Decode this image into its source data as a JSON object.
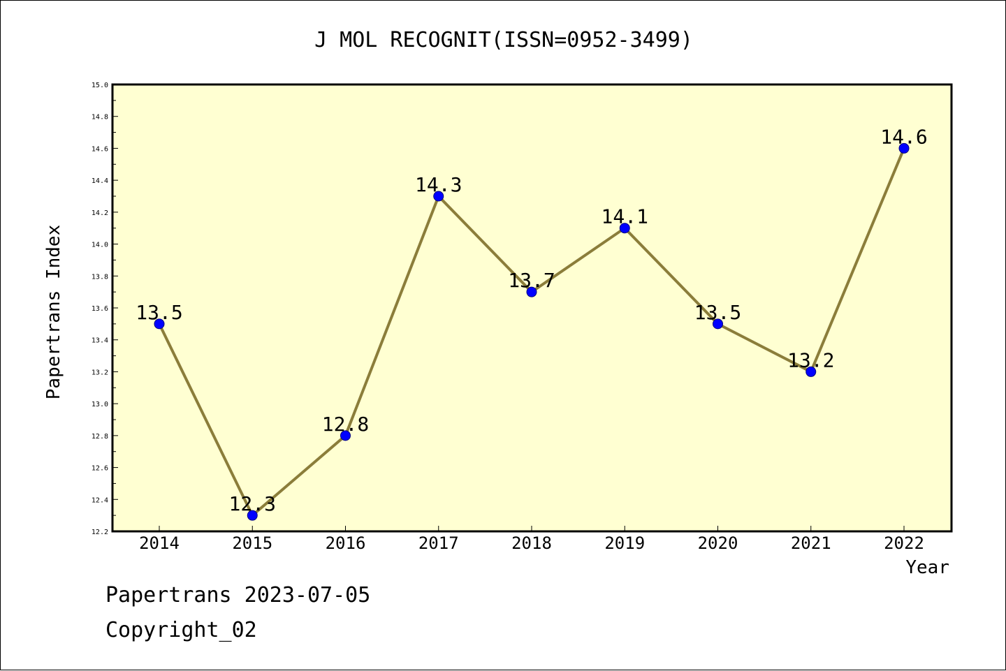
{
  "chart_data": {
    "type": "line",
    "title": "J MOL RECOGNIT(ISSN=0952-3499)",
    "xlabel": "Year",
    "ylabel": "Papertrans Index",
    "categories": [
      "2014",
      "2015",
      "2016",
      "2017",
      "2018",
      "2019",
      "2020",
      "2021",
      "2022"
    ],
    "values": [
      13.5,
      12.3,
      12.8,
      14.3,
      13.7,
      14.1,
      13.5,
      13.2,
      14.6
    ],
    "data_labels": [
      "13.5",
      "12.3",
      "12.8",
      "14.3",
      "13.7",
      "14.1",
      "13.5",
      "13.2",
      "14.6"
    ],
    "ylim": [
      12.2,
      15.0
    ],
    "yticks": [
      "12.2",
      "12.4",
      "12.6",
      "12.8",
      "13.0",
      "13.2",
      "13.4",
      "13.6",
      "13.8",
      "14.0",
      "14.2",
      "14.4",
      "14.6",
      "14.8",
      "15.0"
    ],
    "grid": false,
    "legend": "none",
    "colors": {
      "plot_background": "#ffffd2",
      "line": "#8b7d3a",
      "marker": "#0000ff",
      "marker_edge": "#000080"
    }
  },
  "footer": {
    "line1": "Papertrans 2023-07-05",
    "line2": "Copyright_02"
  }
}
